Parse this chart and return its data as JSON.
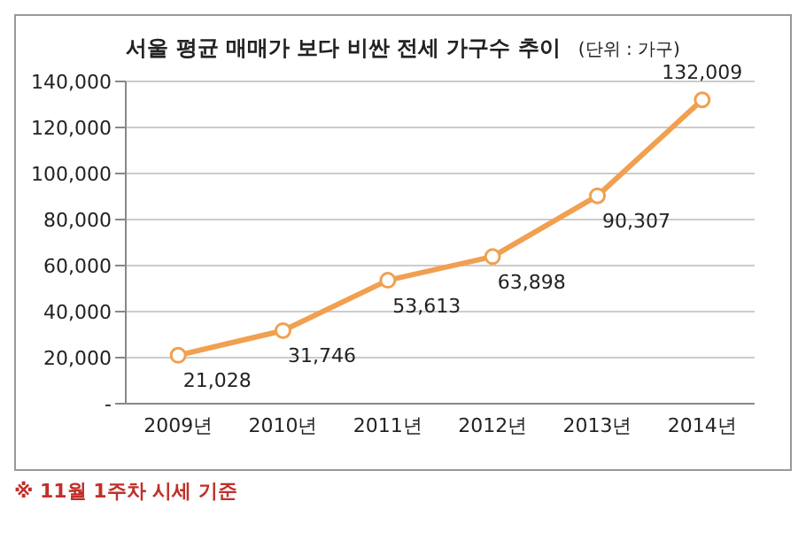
{
  "chart_data": {
    "type": "line",
    "title": "서울 평균 매매가 보다 비싼 전세 가구수 추이",
    "subtitle": "(단위 : 가구)",
    "categories": [
      "2009년",
      "2010년",
      "2011년",
      "2012년",
      "2013년",
      "2014년"
    ],
    "series": [
      {
        "color": "#f0a050",
        "values": [
          21028,
          31746,
          53613,
          63898,
          90307,
          132009
        ],
        "value_labels": [
          "21,028",
          "31,746",
          "53,613",
          "63,898",
          "90,307",
          "132,009"
        ]
      }
    ],
    "ylim": [
      0,
      140000
    ],
    "yticks": [
      {
        "value": 0,
        "label": "-"
      },
      {
        "value": 20000,
        "label": "20,000"
      },
      {
        "value": 40000,
        "label": "40,000"
      },
      {
        "value": 60000,
        "label": "60,000"
      },
      {
        "value": 80000,
        "label": "80,000"
      },
      {
        "value": 100000,
        "label": "100,000"
      },
      {
        "value": 120000,
        "label": "120,000"
      },
      {
        "value": 140000,
        "label": "140,000"
      }
    ],
    "grid": "y",
    "marker": "circle",
    "line_style": "solid",
    "annotations": [
      "※ 11월 1주차 시세 기준"
    ]
  }
}
